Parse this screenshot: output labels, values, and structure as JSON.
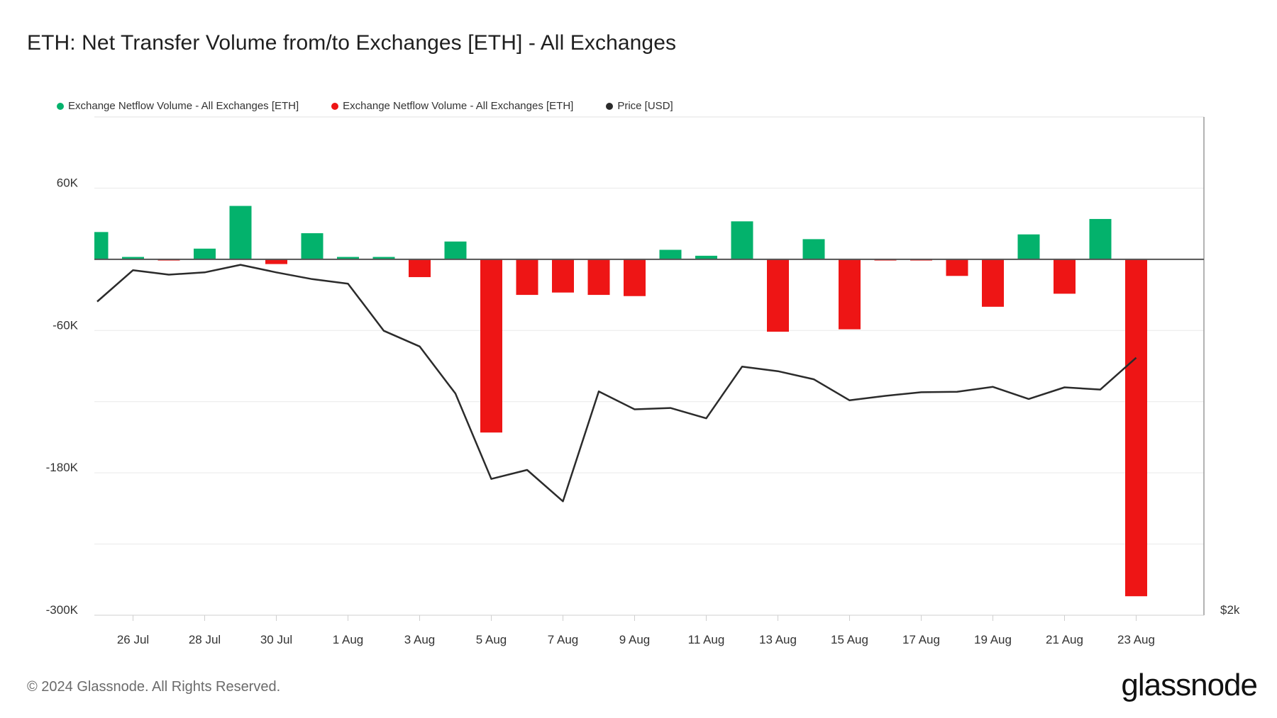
{
  "title": "ETH: Net Transfer Volume from/to Exchanges [ETH] - All Exchanges",
  "footer": "© 2024 Glassnode. All Rights Reserved.",
  "brand": "glassnode",
  "legend": [
    {
      "label": "Exchange Netflow Volume - All Exchanges [ETH]",
      "color": "#03b26c"
    },
    {
      "label": "Exchange Netflow Volume - All Exchanges [ETH]",
      "color": "#ee1515"
    },
    {
      "label": "Price [USD]",
      "color": "#2b2b2b"
    }
  ],
  "chart_data": {
    "type": "bar",
    "title": "ETH: Net Transfer Volume from/to Exchanges [ETH] - All Exchanges",
    "y_left": {
      "ticks": [
        "60K",
        "-60K",
        "-180K",
        "-300K"
      ],
      "tick_values": [
        60000,
        -60000,
        -180000,
        -300000
      ],
      "range": [
        -300000,
        120000
      ]
    },
    "y_right": {
      "ticks": [
        "$2k"
      ],
      "tick_values": [
        2000
      ]
    },
    "x_tick_labels": [
      "26 Jul",
      "28 Jul",
      "30 Jul",
      "1 Aug",
      "3 Aug",
      "5 Aug",
      "7 Aug",
      "9 Aug",
      "11 Aug",
      "13 Aug",
      "15 Aug",
      "17 Aug",
      "19 Aug",
      "21 Aug",
      "23 Aug"
    ],
    "grid": true,
    "legend_position": "top-left",
    "colors": {
      "positive": "#03b26c",
      "negative": "#ee1515",
      "price": "#2b2b2b",
      "zero_line": "#555555"
    },
    "dates": [
      "25 Jul",
      "26 Jul",
      "27 Jul",
      "28 Jul",
      "29 Jul",
      "30 Jul",
      "31 Jul",
      "1 Aug",
      "2 Aug",
      "3 Aug",
      "4 Aug",
      "5 Aug",
      "6 Aug",
      "7 Aug",
      "8 Aug",
      "9 Aug",
      "10 Aug",
      "11 Aug",
      "12 Aug",
      "13 Aug",
      "14 Aug",
      "15 Aug",
      "16 Aug",
      "17 Aug",
      "18 Aug",
      "19 Aug",
      "20 Aug",
      "21 Aug",
      "22 Aug",
      "23 Aug"
    ],
    "series": [
      {
        "name": "Exchange Netflow Volume - All Exchanges [ETH]",
        "type": "bar",
        "values": [
          23000,
          2000,
          -1000,
          9000,
          45000,
          -4000,
          22000,
          2000,
          2000,
          -15000,
          15000,
          -146000,
          -30000,
          -28000,
          -30000,
          -31000,
          8000,
          3000,
          32000,
          -61000,
          17000,
          -59000,
          -1000,
          -1000,
          -14000,
          -40000,
          21000,
          -29000,
          34000,
          -284000
        ]
      },
      {
        "name": "Price [USD]",
        "type": "line",
        "values": [
          3265,
          3335,
          3325,
          3330,
          3347,
          3330,
          3315,
          3305,
          3200,
          3165,
          3060,
          2870,
          2890,
          2820,
          3065,
          3025,
          3028,
          3005,
          3120,
          3110,
          3092,
          3045,
          3055,
          3063,
          3064,
          3075,
          3048,
          3074,
          3069,
          3140
        ]
      }
    ]
  }
}
